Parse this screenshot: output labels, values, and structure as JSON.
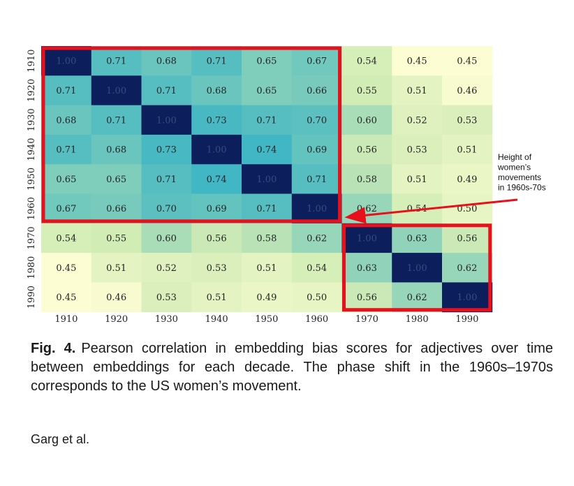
{
  "chart_data": {
    "type": "heatmap",
    "x_categories": [
      "1910",
      "1920",
      "1930",
      "1940",
      "1950",
      "1960",
      "1970",
      "1980",
      "1990"
    ],
    "y_categories": [
      "1910",
      "1920",
      "1930",
      "1940",
      "1950",
      "1960",
      "1970",
      "1980",
      "1990"
    ],
    "values": [
      [
        1.0,
        0.71,
        0.68,
        0.71,
        0.65,
        0.67,
        0.54,
        0.45,
        0.45
      ],
      [
        0.71,
        1.0,
        0.71,
        0.68,
        0.65,
        0.66,
        0.55,
        0.51,
        0.46
      ],
      [
        0.68,
        0.71,
        1.0,
        0.73,
        0.71,
        0.7,
        0.6,
        0.52,
        0.53
      ],
      [
        0.71,
        0.68,
        0.73,
        1.0,
        0.74,
        0.69,
        0.56,
        0.53,
        0.51
      ],
      [
        0.65,
        0.65,
        0.71,
        0.74,
        1.0,
        0.71,
        0.58,
        0.51,
        0.49
      ],
      [
        0.67,
        0.66,
        0.7,
        0.69,
        0.71,
        1.0,
        0.62,
        0.54,
        0.5
      ],
      [
        0.54,
        0.55,
        0.6,
        0.56,
        0.58,
        0.62,
        1.0,
        0.63,
        0.56
      ],
      [
        0.45,
        0.51,
        0.52,
        0.53,
        0.51,
        0.54,
        0.63,
        1.0,
        0.62
      ],
      [
        0.45,
        0.46,
        0.53,
        0.51,
        0.49,
        0.5,
        0.56,
        0.62,
        1.0
      ]
    ],
    "value_labels": [
      [
        "1.00",
        "0.71",
        "0.68",
        "0.71",
        "0.65",
        "0.67",
        "0.54",
        "0.45",
        "0.45"
      ],
      [
        "0.71",
        "1.00",
        "0.71",
        "0.68",
        "0.65",
        "0.66",
        "0.55",
        "0.51",
        "0.46"
      ],
      [
        "0.68",
        "0.71",
        "1.00",
        "0.73",
        "0.71",
        "0.70",
        "0.60",
        "0.52",
        "0.53"
      ],
      [
        "0.71",
        "0.68",
        "0.73",
        "1.00",
        "0.74",
        "0.69",
        "0.56",
        "0.53",
        "0.51"
      ],
      [
        "0.65",
        "0.65",
        "0.71",
        "0.74",
        "1.00",
        "0.71",
        "0.58",
        "0.51",
        "0.49"
      ],
      [
        "0.67",
        "0.66",
        "0.70",
        "0.69",
        "0.71",
        "1.00",
        "0.62",
        "0.54",
        "0.50"
      ],
      [
        "0.54",
        "0.55",
        "0.60",
        "0.56",
        "0.58",
        "0.62",
        "1.00",
        "0.63",
        "0.56"
      ],
      [
        "0.45",
        "0.51",
        "0.52",
        "0.53",
        "0.51",
        "0.54",
        "0.63",
        "1.00",
        "0.62"
      ],
      [
        "0.45",
        "0.46",
        "0.53",
        "0.51",
        "0.49",
        "0.50",
        "0.56",
        "0.62",
        "1.00"
      ]
    ],
    "colormap": "YlGnBu",
    "colors": {
      "low": "#fcfdd3",
      "mid_low": "#d2ecb5",
      "mid": "#7fcdbb",
      "mid_high": "#41b6c4",
      "high": "#0c1f5c",
      "highlight_box": "#e8101a",
      "arrow": "#e8101a"
    },
    "highlight_boxes": [
      {
        "rows": [
          "1910",
          "1960"
        ],
        "cols": [
          "1910",
          "1960"
        ]
      },
      {
        "rows": [
          "1970",
          "1990"
        ],
        "cols": [
          "1970",
          "1990"
        ]
      }
    ],
    "annotation": {
      "lines": [
        "Height of",
        "women’s",
        "movements",
        "in 1960s-70s"
      ],
      "points_to": {
        "row": "1960",
        "col": "1970"
      }
    }
  },
  "caption": {
    "label": "Fig. 4.",
    "text": "Pearson correlation in embedding bias scores for adjectives over time between embeddings for each decade. The phase shift in the 1960s–1970s corresponds to the US women’s movement."
  },
  "credit": "Garg et al."
}
